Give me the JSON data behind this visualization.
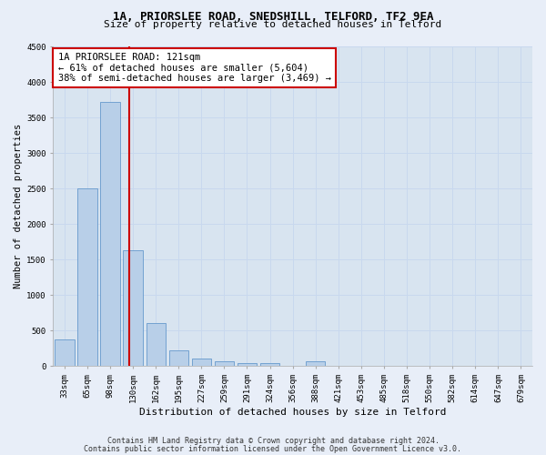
{
  "title1": "1A, PRIORSLEE ROAD, SNEDSHILL, TELFORD, TF2 9EA",
  "title2": "Size of property relative to detached houses in Telford",
  "xlabel": "Distribution of detached houses by size in Telford",
  "ylabel": "Number of detached properties",
  "categories": [
    "33sqm",
    "65sqm",
    "98sqm",
    "130sqm",
    "162sqm",
    "195sqm",
    "227sqm",
    "259sqm",
    "291sqm",
    "324sqm",
    "356sqm",
    "388sqm",
    "421sqm",
    "453sqm",
    "485sqm",
    "518sqm",
    "550sqm",
    "582sqm",
    "614sqm",
    "647sqm",
    "679sqm"
  ],
  "values": [
    370,
    2500,
    3720,
    1630,
    600,
    225,
    105,
    60,
    40,
    40,
    0,
    60,
    0,
    0,
    0,
    0,
    0,
    0,
    0,
    0,
    0
  ],
  "bar_color": "#b8cfe8",
  "bar_edge_color": "#6699cc",
  "vline_color": "#cc0000",
  "annotation_line1": "1A PRIORSLEE ROAD: 121sqm",
  "annotation_line2": "← 61% of detached houses are smaller (5,604)",
  "annotation_line3": "38% of semi-detached houses are larger (3,469) →",
  "annotation_box_color": "#ffffff",
  "annotation_box_edge": "#cc0000",
  "ylim": [
    0,
    4500
  ],
  "yticks": [
    0,
    500,
    1000,
    1500,
    2000,
    2500,
    3000,
    3500,
    4000,
    4500
  ],
  "grid_color": "#c8d8ee",
  "plot_bg_color": "#d8e4f0",
  "fig_bg_color": "#e8eef8",
  "footer1": "Contains HM Land Registry data © Crown copyright and database right 2024.",
  "footer2": "Contains public sector information licensed under the Open Government Licence v3.0.",
  "title1_fontsize": 9,
  "title2_fontsize": 8,
  "xlabel_fontsize": 8,
  "ylabel_fontsize": 7.5,
  "tick_fontsize": 6.5,
  "footer_fontsize": 6,
  "annot_fontsize": 7.5,
  "vline_x_index": 2.82
}
